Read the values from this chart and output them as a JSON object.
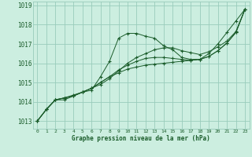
{
  "xlabel": "Graphe pression niveau de la mer (hPa)",
  "background_color": "#cceee0",
  "grid_color": "#99ccbb",
  "text_color": "#1a5c2a",
  "line_color": "#1a5c2a",
  "xlim": [
    -0.5,
    23.5
  ],
  "ylim": [
    1012.6,
    1019.2
  ],
  "xticks": [
    0,
    1,
    2,
    3,
    4,
    5,
    6,
    7,
    8,
    9,
    10,
    11,
    12,
    13,
    14,
    15,
    16,
    17,
    18,
    19,
    20,
    21,
    22,
    23
  ],
  "yticks": [
    1013,
    1014,
    1015,
    1016,
    1017,
    1018,
    1019
  ],
  "series": [
    {
      "x": [
        0,
        1,
        2,
        3,
        4,
        5,
        6,
        7,
        8,
        9,
        10,
        11,
        12,
        13,
        14,
        15,
        16,
        17,
        18,
        19,
        20,
        21,
        22,
        23
      ],
      "y": [
        1013.0,
        1013.6,
        1014.1,
        1014.1,
        1014.3,
        1014.5,
        1014.6,
        1015.3,
        1016.1,
        1017.3,
        1017.55,
        1017.55,
        1017.4,
        1017.3,
        1016.9,
        1016.7,
        1016.3,
        1016.2,
        1016.2,
        1016.5,
        1017.0,
        1017.6,
        1018.2,
        1018.8
      ]
    },
    {
      "x": [
        0,
        1,
        2,
        3,
        4,
        5,
        6,
        7,
        8,
        9,
        10,
        11,
        12,
        13,
        14,
        15,
        16,
        17,
        18,
        19,
        20,
        21,
        22,
        23
      ],
      "y": [
        1013.0,
        1013.6,
        1014.1,
        1014.2,
        1014.3,
        1014.5,
        1014.7,
        1014.9,
        1015.2,
        1015.6,
        1016.0,
        1016.3,
        1016.5,
        1016.7,
        1016.8,
        1016.8,
        1016.65,
        1016.55,
        1016.45,
        1016.6,
        1016.85,
        1017.15,
        1017.65,
        1018.8
      ]
    },
    {
      "x": [
        0,
        1,
        2,
        3,
        4,
        5,
        6,
        7,
        8,
        9,
        10,
        11,
        12,
        13,
        14,
        15,
        16,
        17,
        18,
        19,
        20,
        21,
        22,
        23
      ],
      "y": [
        1013.0,
        1013.6,
        1014.1,
        1014.2,
        1014.3,
        1014.5,
        1014.7,
        1015.0,
        1015.3,
        1015.65,
        1015.9,
        1016.1,
        1016.25,
        1016.3,
        1016.3,
        1016.25,
        1016.2,
        1016.15,
        1016.2,
        1016.35,
        1016.65,
        1017.05,
        1017.6,
        1018.8
      ]
    },
    {
      "x": [
        0,
        1,
        2,
        3,
        4,
        5,
        6,
        7,
        8,
        9,
        10,
        11,
        12,
        13,
        14,
        15,
        16,
        17,
        18,
        19,
        20,
        21,
        22,
        23
      ],
      "y": [
        1013.0,
        1013.6,
        1014.1,
        1014.2,
        1014.35,
        1014.5,
        1014.7,
        1015.0,
        1015.3,
        1015.5,
        1015.7,
        1015.8,
        1015.9,
        1015.95,
        1016.0,
        1016.05,
        1016.1,
        1016.15,
        1016.2,
        1016.35,
        1016.65,
        1017.05,
        1017.6,
        1018.8
      ]
    }
  ]
}
